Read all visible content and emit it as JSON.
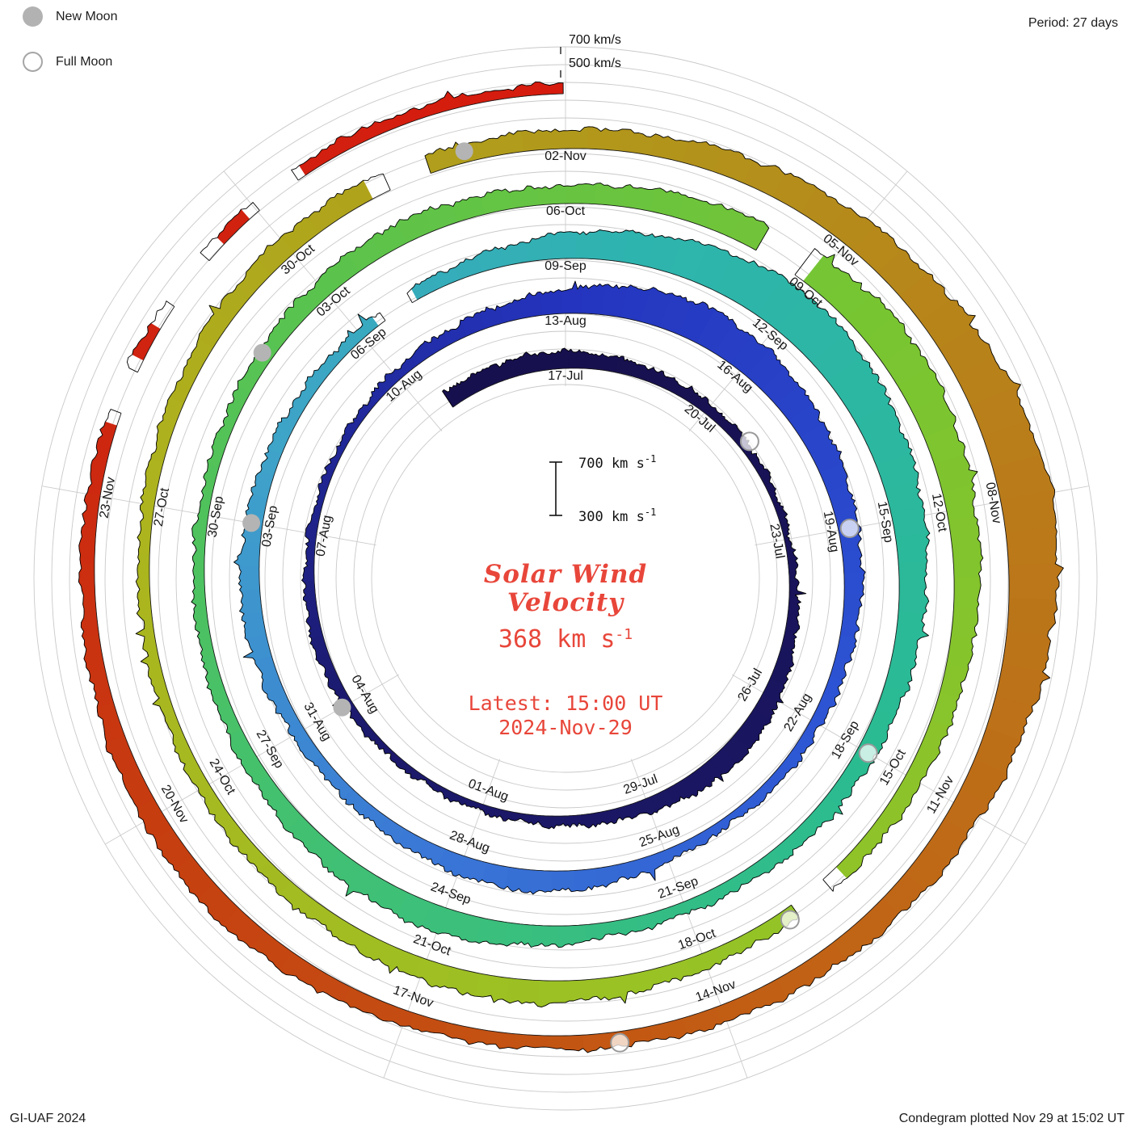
{
  "header": {
    "period": "Period: 27 days"
  },
  "legend": {
    "new_moon_label": "New Moon",
    "full_moon_label": "Full Moon"
  },
  "footer": {
    "credit": "GI-UAF 2024",
    "plotted": "Condegram plotted Nov 29 at 15:02 UT"
  },
  "center": {
    "text_color": "#e8463a",
    "title1": "Solar Wind",
    "title2": "Velocity",
    "value": "368 km s",
    "sup": "-1",
    "latest1": "Latest: 15:00 UT",
    "latest2": "2024-Nov-29",
    "scale_top": "700 km s",
    "scale_bottom": "300 km s"
  },
  "outer_labels": [
    {
      "text": "700 km/s",
      "r": 658
    },
    {
      "text": "500 km/s",
      "r": 629
    }
  ],
  "chart_data": {
    "type": "area",
    "subtype": "condegram-spiral",
    "title": "Solar Wind Velocity",
    "units": "km/s",
    "period_days": 27,
    "start_date": "17-Jul-2024",
    "end_date": "29-Nov-2024",
    "latest": {
      "value_kms": 368,
      "time": "15:00 UT",
      "date": "2024-Nov-29"
    },
    "radial_scale": {
      "baseline_kms": 300,
      "max_kms": 700,
      "ref_labels": [
        "700 km/s",
        "500 km/s"
      ]
    },
    "date_labels": [
      {
        "day": 0,
        "text": "17-Jul"
      },
      {
        "day": 3,
        "text": "20-Jul"
      },
      {
        "day": 6,
        "text": "23-Jul"
      },
      {
        "day": 9,
        "text": "26-Jul"
      },
      {
        "day": 12,
        "text": "29-Jul"
      },
      {
        "day": 15,
        "text": "01-Aug"
      },
      {
        "day": 18,
        "text": "04-Aug"
      },
      {
        "day": 21,
        "text": "07-Aug"
      },
      {
        "day": 24,
        "text": "10-Aug"
      },
      {
        "day": 27,
        "text": "13-Aug"
      },
      {
        "day": 30,
        "text": "16-Aug"
      },
      {
        "day": 33,
        "text": "19-Aug"
      },
      {
        "day": 36,
        "text": "22-Aug"
      },
      {
        "day": 39,
        "text": "25-Aug"
      },
      {
        "day": 42,
        "text": "28-Aug"
      },
      {
        "day": 45,
        "text": "31-Aug"
      },
      {
        "day": 48,
        "text": "03-Sep"
      },
      {
        "day": 51,
        "text": "06-Sep"
      },
      {
        "day": 54,
        "text": "09-Sep"
      },
      {
        "day": 57,
        "text": "12-Sep"
      },
      {
        "day": 60,
        "text": "15-Sep"
      },
      {
        "day": 63,
        "text": "18-Sep"
      },
      {
        "day": 66,
        "text": "21-Sep"
      },
      {
        "day": 69,
        "text": "24-Sep"
      },
      {
        "day": 72,
        "text": "27-Sep"
      },
      {
        "day": 75,
        "text": "30-Sep"
      },
      {
        "day": 78,
        "text": "03-Oct"
      },
      {
        "day": 81,
        "text": "06-Oct"
      },
      {
        "day": 84,
        "text": "09-Oct"
      },
      {
        "day": 87,
        "text": "12-Oct"
      },
      {
        "day": 90,
        "text": "15-Oct"
      },
      {
        "day": 93,
        "text": "18-Oct"
      },
      {
        "day": 96,
        "text": "21-Oct"
      },
      {
        "day": 99,
        "text": "24-Oct"
      },
      {
        "day": 102,
        "text": "27-Oct"
      },
      {
        "day": 105,
        "text": "30-Oct"
      },
      {
        "day": 108,
        "text": "02-Nov"
      },
      {
        "day": 111,
        "text": "05-Nov"
      },
      {
        "day": 114,
        "text": "08-Nov"
      },
      {
        "day": 117,
        "text": "11-Nov"
      },
      {
        "day": 120,
        "text": "14-Nov"
      },
      {
        "day": 123,
        "text": "17-Nov"
      },
      {
        "day": 126,
        "text": "20-Nov"
      },
      {
        "day": 129,
        "text": "23-Nov"
      }
    ],
    "daily_velocity_kms": [
      420,
      400,
      385,
      370,
      360,
      350,
      345,
      360,
      385,
      420,
      450,
      430,
      400,
      380,
      362,
      350,
      342,
      346,
      362,
      382,
      372,
      360,
      350,
      356,
      372,
      392,
      425,
      465,
      525,
      560,
      540,
      500,
      468,
      440,
      420,
      400,
      382,
      370,
      362,
      382,
      422,
      452,
      432,
      402,
      382,
      392,
      420,
      440,
      420,
      400,
      382,
      372,
      382,
      422,
      472,
      520,
      580,
      625,
      600,
      560,
      520,
      482,
      452,
      430,
      410,
      392,
      380,
      402,
      442,
      482,
      462,
      432,
      410,
      392,
      380,
      372,
      382,
      402,
      432,
      452,
      432,
      420,
      452,
      482,
      522,
      562,
      542,
      502,
      470,
      442,
      420,
      402,
      392,
      402,
      432,
      462,
      442,
      422,
      402,
      392,
      382,
      376,
      382,
      402,
      422,
      442,
      432,
      422,
      432,
      450,
      482,
      522,
      562,
      622,
      660,
      622,
      562,
      512,
      472,
      442,
      422,
      402,
      392,
      402,
      432,
      462,
      442,
      422,
      402,
      392,
      382,
      376,
      380,
      386,
      376,
      368
    ],
    "color_stops": [
      {
        "day": 0,
        "color": "#17104e"
      },
      {
        "day": 18,
        "color": "#1c1a6e"
      },
      {
        "day": 27,
        "color": "#2434be"
      },
      {
        "day": 36,
        "color": "#2d55d4"
      },
      {
        "day": 43,
        "color": "#3b7ad6"
      },
      {
        "day": 49,
        "color": "#3fa3c9"
      },
      {
        "day": 55,
        "color": "#2eb4ae"
      },
      {
        "day": 63,
        "color": "#2abb92"
      },
      {
        "day": 70,
        "color": "#3fc076"
      },
      {
        "day": 78,
        "color": "#5ac34d"
      },
      {
        "day": 85,
        "color": "#79c531"
      },
      {
        "day": 94,
        "color": "#9ac224"
      },
      {
        "day": 102,
        "color": "#adb41e"
      },
      {
        "day": 108,
        "color": "#b1991b"
      },
      {
        "day": 114,
        "color": "#ba7b1a"
      },
      {
        "day": 120,
        "color": "#c25d14"
      },
      {
        "day": 126,
        "color": "#c63d10"
      },
      {
        "day": 130,
        "color": "#cf2410"
      },
      {
        "day": 135,
        "color": "#d61b0e"
      }
    ],
    "gaps_days": [
      [
        51.4,
        51.8
      ],
      [
        83.3,
        83.75
      ],
      [
        91.5,
        91.9
      ],
      [
        106.2,
        106.6
      ],
      [
        129.8,
        130.15
      ],
      [
        130.9,
        131.35
      ],
      [
        132.05,
        132.45
      ]
    ],
    "moons": {
      "new_days": [
        18,
        48,
        77,
        107
      ],
      "full_days": [
        4,
        33,
        63,
        92,
        121
      ]
    }
  }
}
